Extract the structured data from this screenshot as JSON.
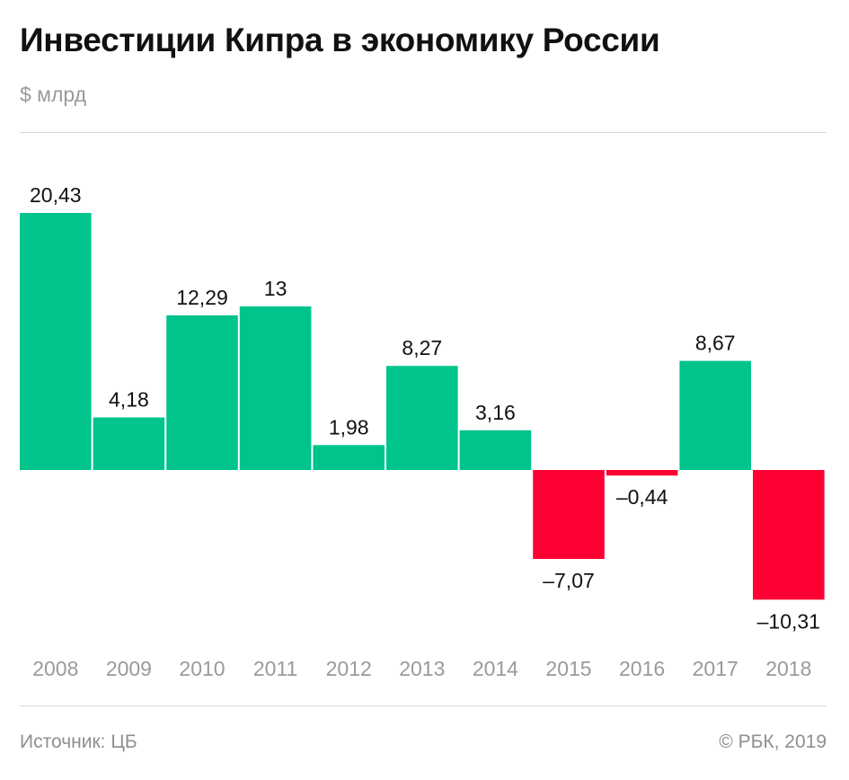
{
  "header": {
    "title": "Инвестиции Кипра в экономику России",
    "unit": "$ млрд"
  },
  "footer": {
    "source": "Источник: ЦБ",
    "copyright": "© РБК, 2019"
  },
  "colors": {
    "positive": "#00c48c",
    "negative": "#ff0033",
    "category_label": "#9a9a9a",
    "value_label": "#111111"
  },
  "chart_data": {
    "type": "bar",
    "title": "Инвестиции Кипра в экономику России",
    "ylabel": "$ млрд",
    "categories": [
      "2008",
      "2009",
      "2010",
      "2011",
      "2012",
      "2013",
      "2014",
      "2015",
      "2016",
      "2017",
      "2018"
    ],
    "values": [
      20.43,
      4.18,
      12.29,
      13,
      1.98,
      8.27,
      3.16,
      -7.07,
      -0.44,
      8.67,
      -10.31
    ],
    "value_labels": [
      "20,43",
      "4,18",
      "12,29",
      "13",
      "1,98",
      "8,27",
      "3,16",
      "–7,07",
      "–0,44",
      "8,67",
      "–10,31"
    ],
    "grid": false,
    "legend": "none"
  }
}
